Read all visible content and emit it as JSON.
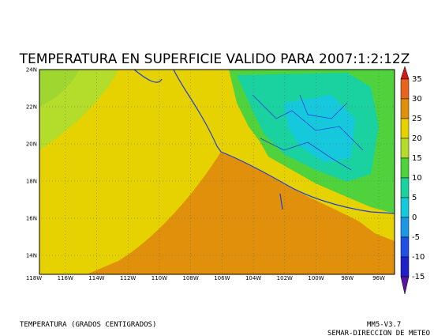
{
  "title": "TEMPERATURA EN SUPERFICIE VALIDO PARA 2007:1:2:12Z",
  "map": {
    "lon_labels": [
      "118W",
      "116W",
      "114W",
      "112W",
      "110W",
      "108W",
      "106W",
      "104W",
      "102W",
      "100W",
      "98W",
      "96W"
    ],
    "lat_labels": [
      "24N",
      "22N",
      "20N",
      "18N",
      "16N",
      "14N"
    ]
  },
  "colorbar": {
    "levels": [
      35,
      30,
      25,
      20,
      15,
      10,
      5,
      0,
      -5,
      -10,
      -15
    ],
    "colors": [
      "#d41818",
      "#e8641c",
      "#e0900a",
      "#e6d200",
      "#b4dc2a",
      "#50d23c",
      "#1ad2a0",
      "#16c8dc",
      "#1e96e6",
      "#1e50e6",
      "#2020c8",
      "#5a14a0"
    ]
  },
  "footer": {
    "variable": "TEMPERATURA (GRADOS CENTIGRADOS)",
    "model": "MM5-V3.7",
    "source": "SEMAR-DIRECCION DE METEO"
  }
}
